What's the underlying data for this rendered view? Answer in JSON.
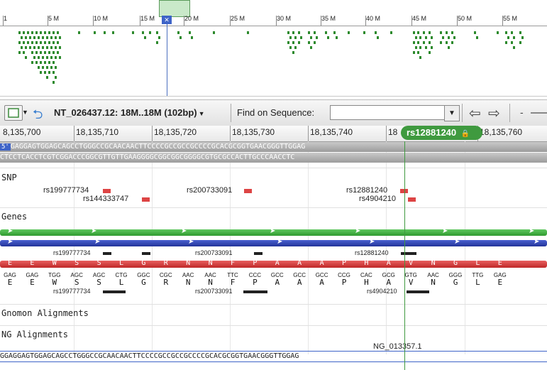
{
  "overview": {
    "scale_labels": [
      "1",
      "5 M",
      "10 M",
      "15 M",
      "20 M",
      "25 M",
      "30 M",
      "35 M",
      "40 M",
      "45 M",
      "50 M",
      "55 M"
    ],
    "cursor_icon": "scissors-icon"
  },
  "toolbar": {
    "seq_title": "NT_026437.12: 18M..18M (102bp)",
    "find_label": "Find on Sequence:",
    "find_value": "",
    "minus_label": "-",
    "icons": [
      "panel-toggle-icon",
      "undo-arrow-icon",
      "back-arrow-icon",
      "forward-arrow-icon"
    ]
  },
  "ruler": {
    "labels": [
      "8,135,700",
      "18,135,710",
      "18,135,720",
      "18,135,730",
      "18,135,740",
      "18",
      "18,135,760"
    ],
    "marker": "rs12881240"
  },
  "sequence": {
    "forward": "GAGGAGTGGAGCAGCCTGGGCCGCAACAACTTCCCCGCCGCCGCCCCGCACGCGGTGAACGGGTTGGAG",
    "reverse": "CTCCTCACCTCGTCGGACCCGGCGTTGTTGAAGGGGCGGCGGCGGGGCGTGCGCCACTTGCCCAACCTC"
  },
  "tracks": {
    "snp_header": "SNP",
    "genes_header": "Genes",
    "gnomon_header": "Gnomon Alignments",
    "ng_header": "NG Alignments"
  },
  "snp_labels": {
    "a": "rs199777734",
    "b": "rs144333747",
    "c": "rs200733091",
    "d": "rs12881240",
    "e": "rs4904210"
  },
  "gene_labels": {
    "a": "rs199777734",
    "b": "rs200733091",
    "c": "rs12881240"
  },
  "codon_labels": {
    "a": "rs199777734",
    "b": "rs200733091",
    "c": "rs4904210"
  },
  "codons": [
    "GAG",
    "GAG",
    "TGG",
    "AGC",
    "AGC",
    "CTG",
    "GGC",
    "CGC",
    "AAC",
    "AAC",
    "TTC",
    "CCC",
    "GCC",
    "GCC",
    "GCC",
    "CCG",
    "CAC",
    "GCG",
    "GTG",
    "AAC",
    "GGG",
    "TTG",
    "GAG"
  ],
  "amino_acids": [
    "E",
    "E",
    "W",
    "S",
    "S",
    "L",
    "G",
    "R",
    "N",
    "N",
    "F",
    "P",
    "A",
    "A",
    "A",
    "P",
    "H",
    "A",
    "V",
    "N",
    "G",
    "L",
    "E"
  ],
  "red_bar_aa": [
    "E",
    "E",
    "W",
    "S",
    "S",
    "L",
    "G",
    "R",
    "N",
    "N",
    "F",
    "P",
    "A",
    "A",
    "A",
    "P",
    "H",
    "A",
    "V",
    "N",
    "G",
    "L",
    "E"
  ],
  "ng": {
    "label": "NG_013357.1",
    "sequence": "GGAGGAGTGGAGCAGCCTGGGCCGCAACAACTTCCCCGCCGCCGCCCCGCACGCGGTGAACGGGTTGGAG"
  },
  "colors": {
    "snp_dot": "#2d8a2d",
    "green_bar": "#3fae3f",
    "blue_bar": "#2e44b8",
    "red_bar": "#d83c3c",
    "marker_badge": "#3f9a3f"
  }
}
